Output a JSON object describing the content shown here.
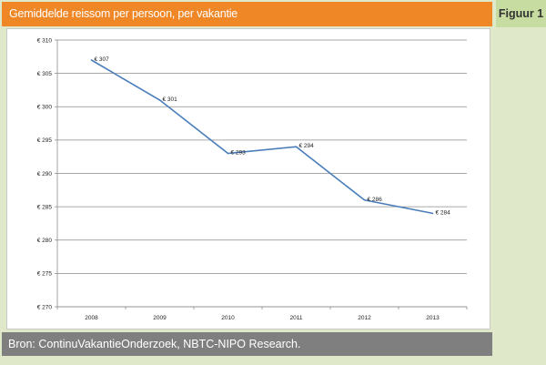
{
  "header": {
    "title": "Gemiddelde reissom per persoon, per vakantie"
  },
  "figure_label": "Figuur 1",
  "footer": {
    "source": "Bron: ContinuVakantieOnderzoek, NBTC-NIPO Research."
  },
  "colors": {
    "accent": "#ef8727",
    "line": "#4a7ebb",
    "background": "#dfe9c9",
    "footer": "#7f7f7f"
  },
  "chart_data": {
    "type": "line",
    "title": "",
    "xlabel": "",
    "ylabel": "",
    "categories": [
      "2008",
      "2009",
      "2010",
      "2011",
      "2012",
      "2013"
    ],
    "series": [
      {
        "values": [
          307,
          301,
          293,
          294,
          286,
          284
        ]
      }
    ],
    "data_labels": [
      "€ 307",
      "€ 301",
      "€ 293",
      "€ 294",
      "€ 286",
      "€ 284"
    ],
    "y_tick_labels": [
      "€ 270",
      "€ 275",
      "€ 280",
      "€ 285",
      "€ 290",
      "€ 295",
      "€ 300",
      "€ 305",
      "€ 310"
    ],
    "ylim": [
      270,
      310
    ],
    "grid": true,
    "legend": "none"
  }
}
